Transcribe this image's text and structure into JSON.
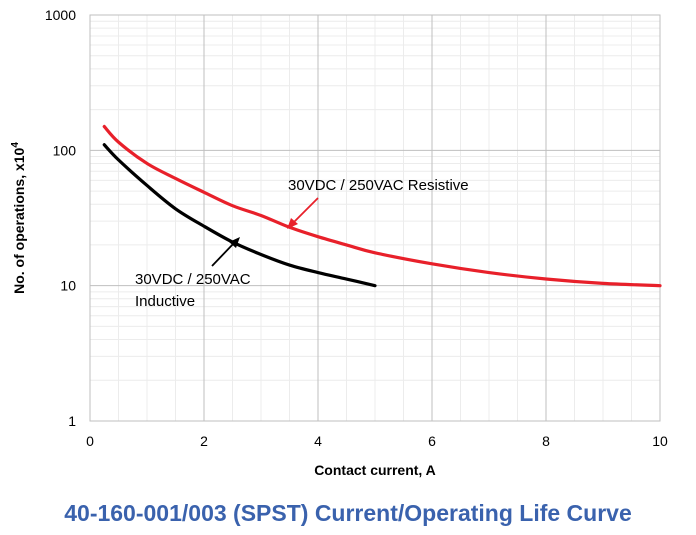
{
  "caption": "40-160-001/003 (SPST) Current/Operating Life Curve",
  "chart_data": {
    "type": "line",
    "xlabel": "Contact current, A",
    "ylabel": "No. of operations, x10",
    "ylabel_superscript": "4",
    "xlim": [
      0,
      10
    ],
    "ylim": [
      1,
      1000
    ],
    "yscale": "log",
    "x_ticks": [
      "0",
      "2",
      "4",
      "6",
      "8",
      "10"
    ],
    "y_ticks": [
      "1",
      "10",
      "100",
      "1000"
    ],
    "grid": true,
    "series": [
      {
        "name": "30VDC / 250VAC Resistive",
        "color": "#e8202a",
        "x": [
          0.25,
          0.5,
          1,
          1.5,
          2,
          2.5,
          3,
          3.5,
          4,
          4.5,
          5,
          6,
          7,
          8,
          9,
          10
        ],
        "y": [
          150,
          115,
          80,
          62,
          49,
          39,
          33,
          27,
          23,
          20,
          17.5,
          14.5,
          12.5,
          11.2,
          10.4,
          10
        ]
      },
      {
        "name": "30VDC / 250VAC Inductive",
        "color": "#000000",
        "x": [
          0.25,
          0.5,
          1,
          1.5,
          2,
          2.5,
          3,
          3.5,
          4,
          4.5,
          5
        ],
        "y": [
          110,
          85,
          55,
          37,
          27.5,
          21,
          17,
          14.2,
          12.5,
          11.2,
          10
        ]
      }
    ],
    "annotations": [
      {
        "lines": [
          "30VDC / 250VAC Resistive"
        ],
        "series": 0
      },
      {
        "lines": [
          "30VDC / 250VAC",
          "Inductive"
        ],
        "series": 1
      }
    ]
  }
}
